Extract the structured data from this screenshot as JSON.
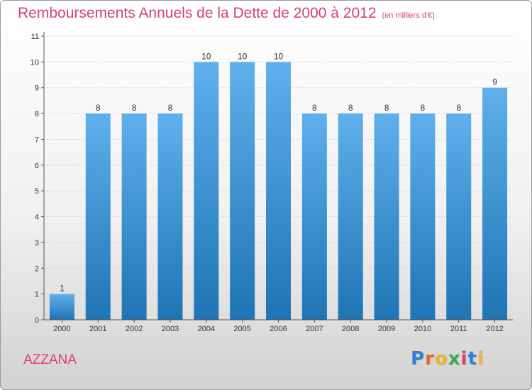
{
  "header": {
    "title": "Remboursements Annuels de la Dette de 2000 à 2012",
    "unit": "(en milliers d'€)"
  },
  "footer": {
    "commune": "AZZANA",
    "logo": {
      "name": "proxiti-logo",
      "letters": [
        "P",
        "r",
        "o",
        "x",
        "i",
        "t",
        "i"
      ],
      "colors": [
        "#2e7fd6",
        "#e8662a",
        "#f2b233",
        "#3aa845",
        "#d93b7a",
        "#2e7fd6",
        "#f2b233"
      ]
    }
  },
  "colors": {
    "bar_light": "#5fb0ec",
    "bar_dark": "#1f74b4",
    "axis": "#555555",
    "grid": "#cfd6dc",
    "text": "#333333"
  },
  "chart_data": {
    "type": "bar",
    "title": "Remboursements Annuels de la Dette de 2000 à 2012",
    "subtitle": "(en milliers d'€)",
    "categories": [
      "2000",
      "2001",
      "2002",
      "2003",
      "2004",
      "2005",
      "2006",
      "2007",
      "2008",
      "2009",
      "2010",
      "2011",
      "2012"
    ],
    "values": [
      1,
      8,
      8,
      8,
      10,
      10,
      10,
      8,
      8,
      8,
      8,
      8,
      9
    ],
    "ylim": [
      0,
      11
    ],
    "yticks": [
      0,
      1,
      2,
      3,
      4,
      5,
      6,
      7,
      8,
      9,
      10,
      11
    ],
    "grid": true,
    "data_labels": true,
    "legend": "none"
  }
}
